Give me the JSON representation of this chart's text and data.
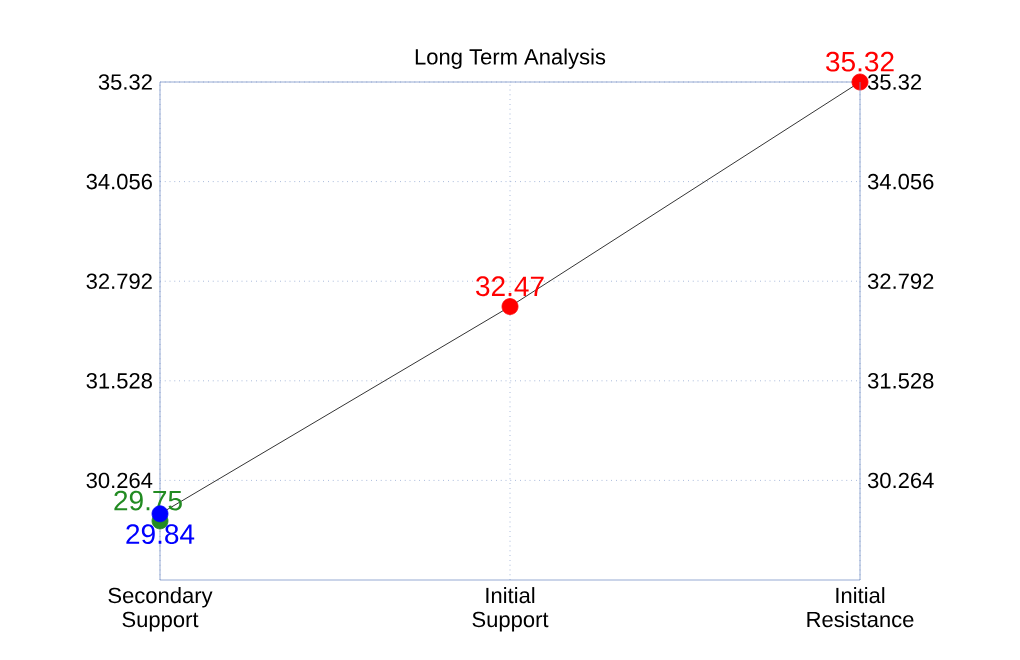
{
  "chart_data": {
    "type": "line",
    "title": "Long Term Analysis",
    "categories": [
      "Secondary Support",
      "Initial Support",
      "Initial Resistance"
    ],
    "series": [
      {
        "color": "#000000",
        "values": [
          29.84,
          32.47,
          35.32
        ],
        "marker": "none"
      },
      {
        "type": "scatter",
        "color": "#ff0000",
        "values": [
          null,
          32.47,
          35.32
        ],
        "marker": "circle",
        "value_labels": [
          null,
          "32.47",
          "35.32"
        ]
      },
      {
        "type": "scatter",
        "color": "#228b22",
        "values": [
          29.75,
          null,
          null
        ],
        "marker": "circle",
        "value_labels": [
          "29.75",
          null,
          null
        ]
      },
      {
        "type": "scatter",
        "color": "#0000ff",
        "values": [
          29.84,
          null,
          null
        ],
        "marker": "circle",
        "value_labels": [
          "29.84",
          null,
          null
        ]
      }
    ],
    "ylim": [
      29.0,
      35.32
    ],
    "yticks": [
      30.264,
      31.528,
      32.792,
      34.056,
      35.32
    ],
    "y2lim": [
      29.0,
      35.32
    ],
    "y2ticks": [
      30.264,
      31.528,
      32.792,
      34.056,
      35.32
    ],
    "grid": true
  }
}
